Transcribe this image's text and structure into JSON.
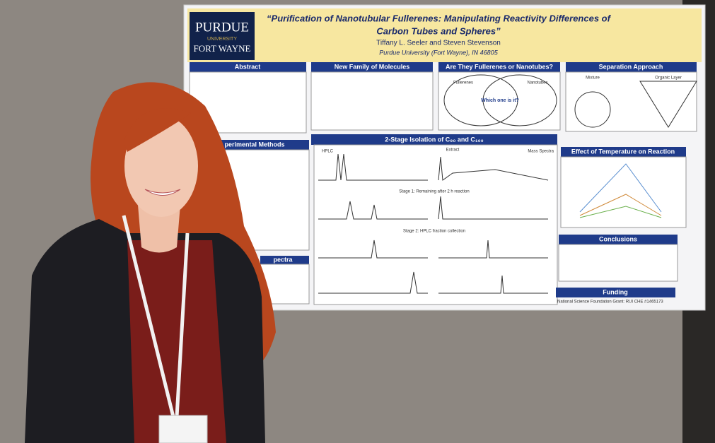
{
  "poster": {
    "logo": [
      "PURDUE",
      "UNIVERSITY",
      "FORT WAYNE"
    ],
    "title": [
      "“Purification of Nanotubular Fullerenes: Manipulating Reactivity Differences of",
      "Carbon Tubes and Spheres”"
    ],
    "authors": "Tiffany L. Seeler and Steven Stevenson",
    "affiliation": "Purdue University (Fort Wayne), IN 46805",
    "sections": {
      "abstract": "Abstract",
      "family": "New Family of Molecules",
      "question": "Are They Fullerenes or Nanotubes?",
      "separation": "Separation Approach",
      "methods": "perimental Methods",
      "isolation": "2-Stage Isolation of C₉₀ and C₁₀₀",
      "temperature": "Effect of Temperature on Reaction",
      "conclusions": "Conclusions",
      "funding": "Funding",
      "spectra": "pectra"
    },
    "panels": {
      "fullerenes": "Fullerenes",
      "nanotubes": "Nanotubes",
      "which": "Which one is it?",
      "mixture": "Mixture",
      "organic": "Organic Layer",
      "hplc": "HPLC",
      "mass": "Mass Spectra",
      "extract": "Extract",
      "stage1": "Stage 1:  Remaining after 2 h reaction",
      "stage2": "Stage 2:  HPLC fraction collection",
      "grant": "National Science Foundation Grant:  RUI CHE #1465173"
    }
  }
}
